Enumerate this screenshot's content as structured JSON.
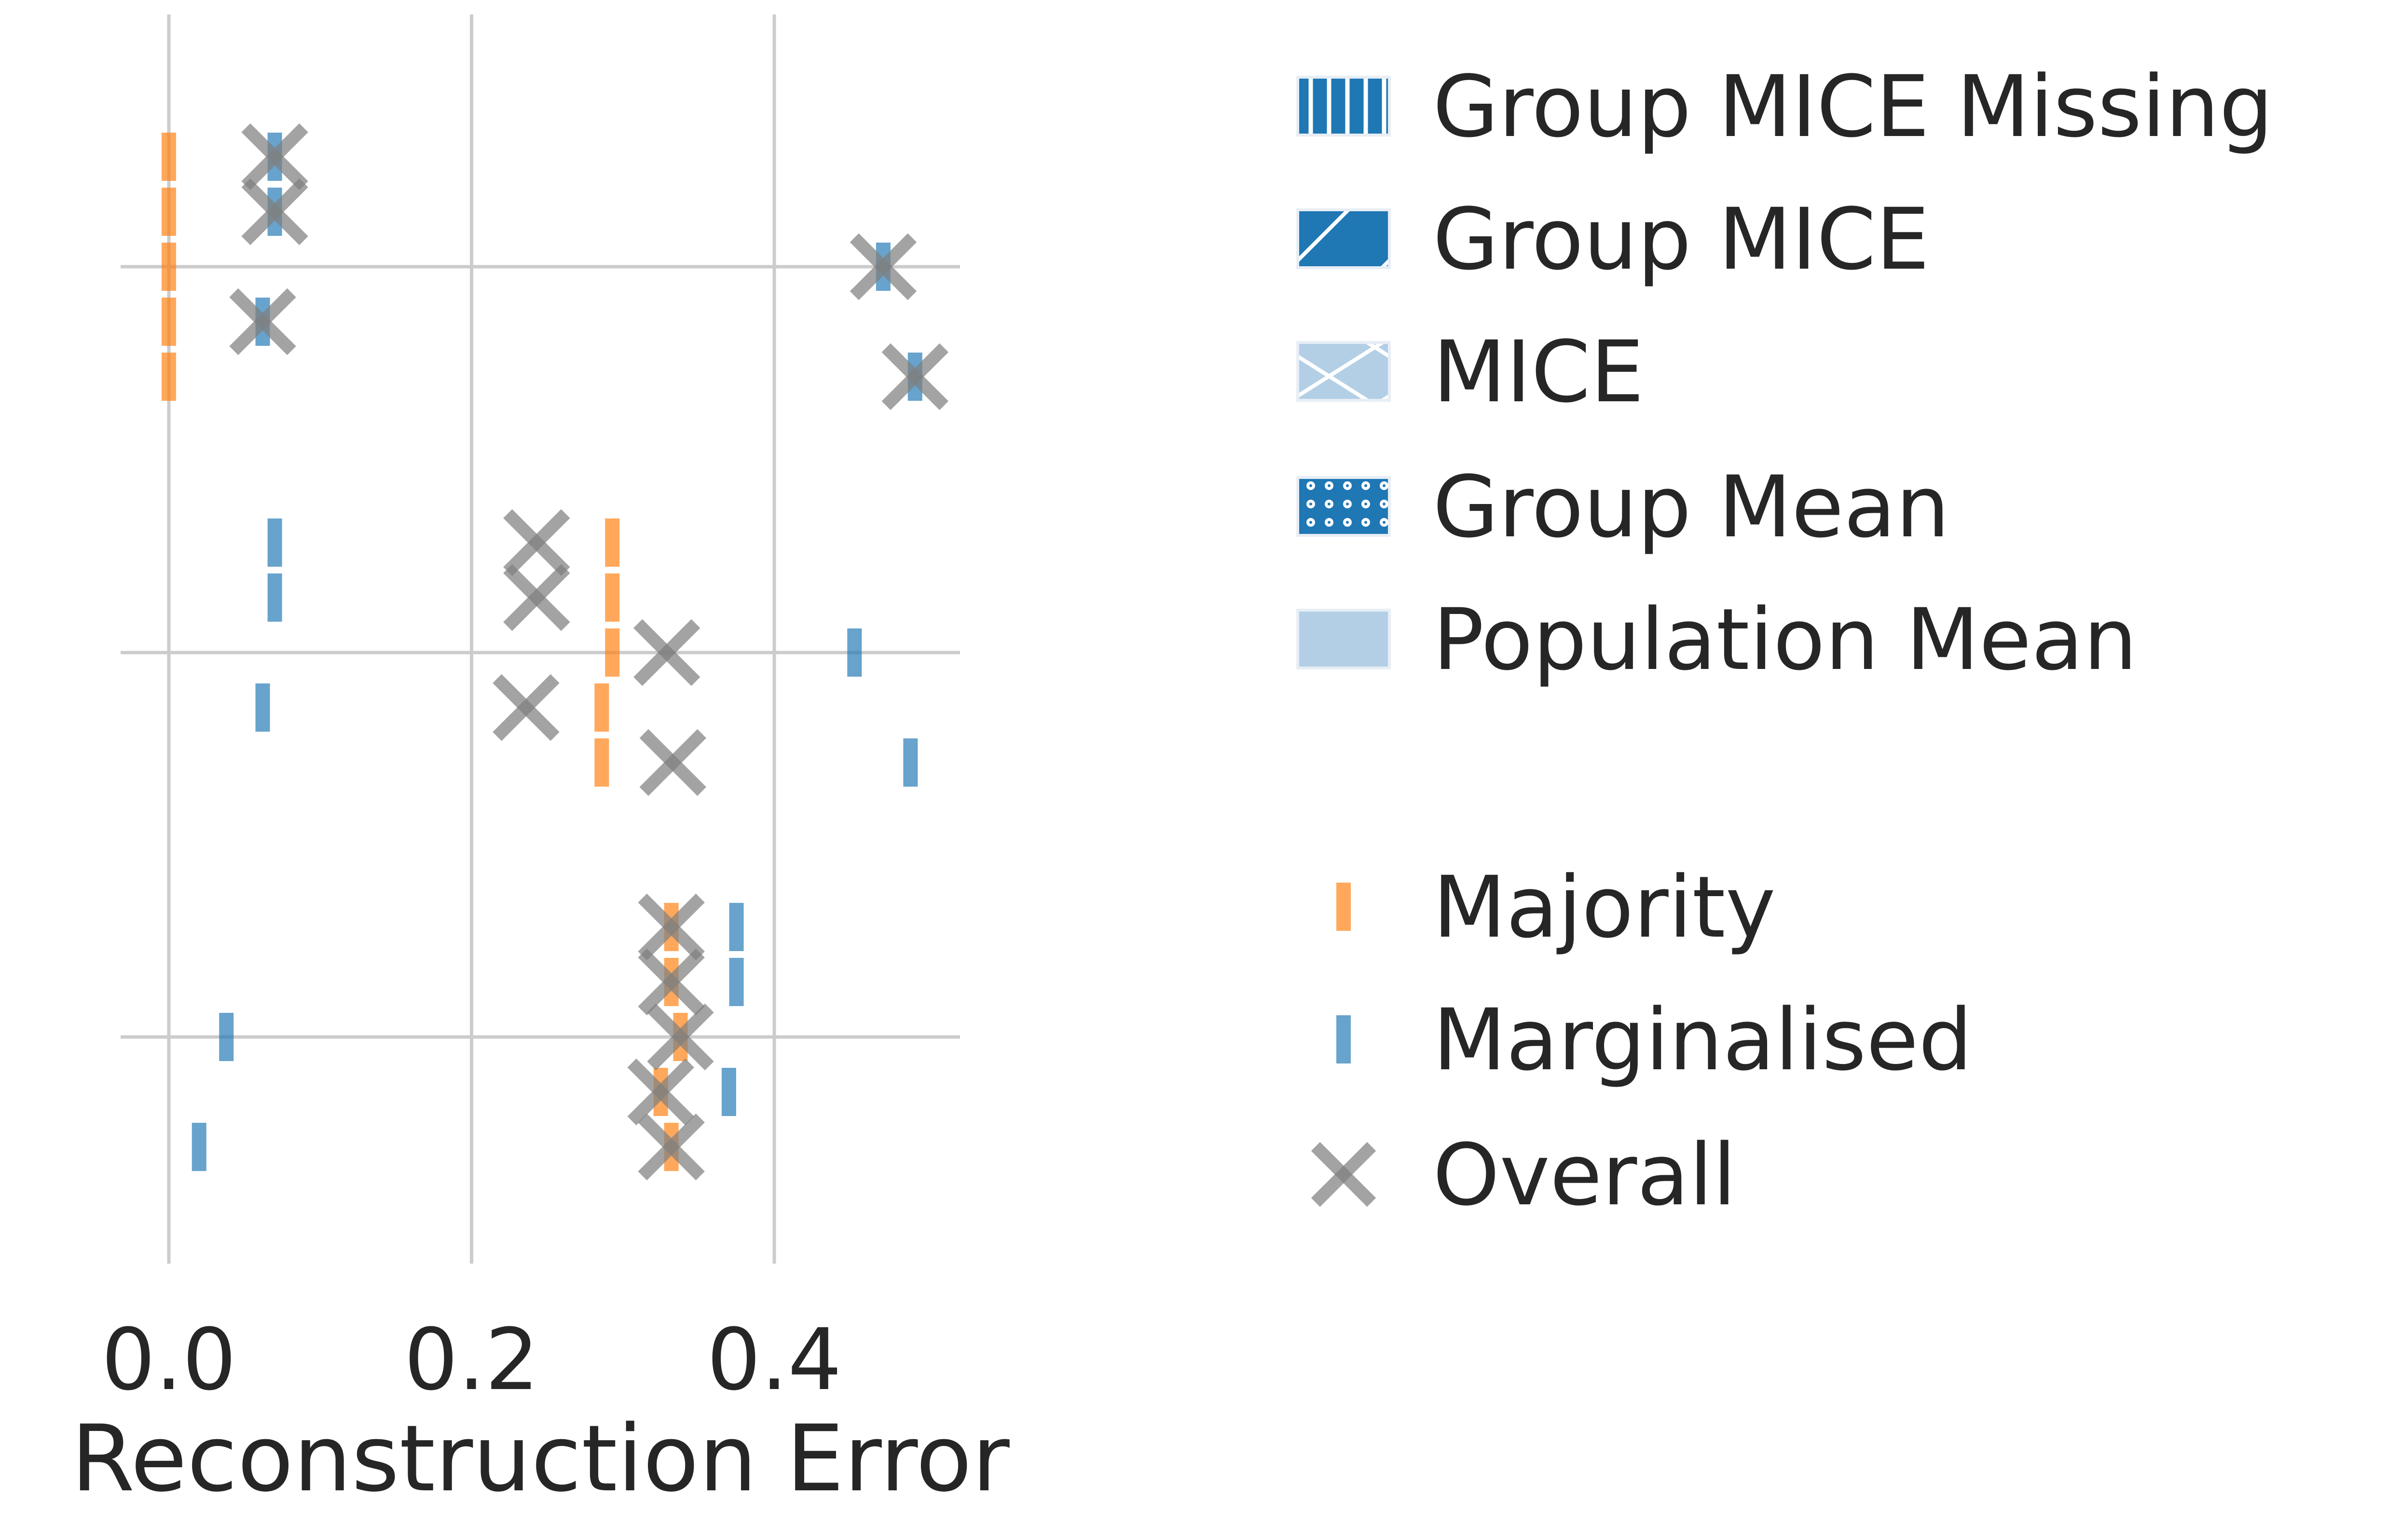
{
  "chart_data": {
    "type": "scatter",
    "title": "",
    "xlabel": "Reconstruction Error",
    "ylabel": "",
    "xlim": [
      -0.03,
      0.525
    ],
    "xticks": [
      0.0,
      0.2,
      0.4
    ],
    "xtick_labels": [
      "0.0",
      "0.2",
      "0.4"
    ],
    "row_groups": 3,
    "methods": [
      "Group MICE Missing",
      "Group MICE",
      "MICE",
      "Group Mean",
      "Population Mean"
    ],
    "series": [
      {
        "name": "Majority",
        "color": "#ff7f0e",
        "marker": "bar",
        "values": [
          [
            0.0,
            0.0,
            0.0,
            0.0,
            0.0
          ],
          [
            0.293,
            0.293,
            0.293,
            0.286,
            0.286
          ],
          [
            0.332,
            0.332,
            0.338,
            0.325,
            0.332
          ]
        ]
      },
      {
        "name": "Marginalised",
        "color": "#1f77b4",
        "marker": "bar",
        "values": [
          [
            0.07,
            0.07,
            0.472,
            0.062,
            0.493
          ],
          [
            0.07,
            0.07,
            0.453,
            0.062,
            0.49
          ],
          [
            0.375,
            0.375,
            0.038,
            0.37,
            0.02
          ]
        ]
      },
      {
        "name": "Overall",
        "color": "#7f7f7f",
        "marker": "x",
        "values": [
          [
            0.07,
            0.07,
            0.472,
            0.062,
            0.493
          ],
          [
            0.243,
            0.243,
            0.329,
            0.236,
            0.333
          ],
          [
            0.332,
            0.332,
            0.338,
            0.325,
            0.332
          ]
        ]
      }
    ],
    "legend": {
      "placement": "right",
      "methods": [
        {
          "label": "Group MICE Missing",
          "hatch": "vertical",
          "style": "dark"
        },
        {
          "label": "Group MICE",
          "hatch": "diagonal",
          "style": "dark"
        },
        {
          "label": "MICE",
          "hatch": "cross",
          "style": "light"
        },
        {
          "label": "Group Mean",
          "hatch": "dots",
          "style": "dark"
        },
        {
          "label": "Population Mean",
          "hatch": "none",
          "style": "light"
        }
      ],
      "groups": [
        {
          "label": "Majority",
          "marker": "bar",
          "color": "#ff7f0e"
        },
        {
          "label": "Marginalised",
          "marker": "bar",
          "color": "#1f77b4"
        },
        {
          "label": "Overall",
          "marker": "x",
          "color": "#7f7f7f"
        }
      ]
    }
  }
}
